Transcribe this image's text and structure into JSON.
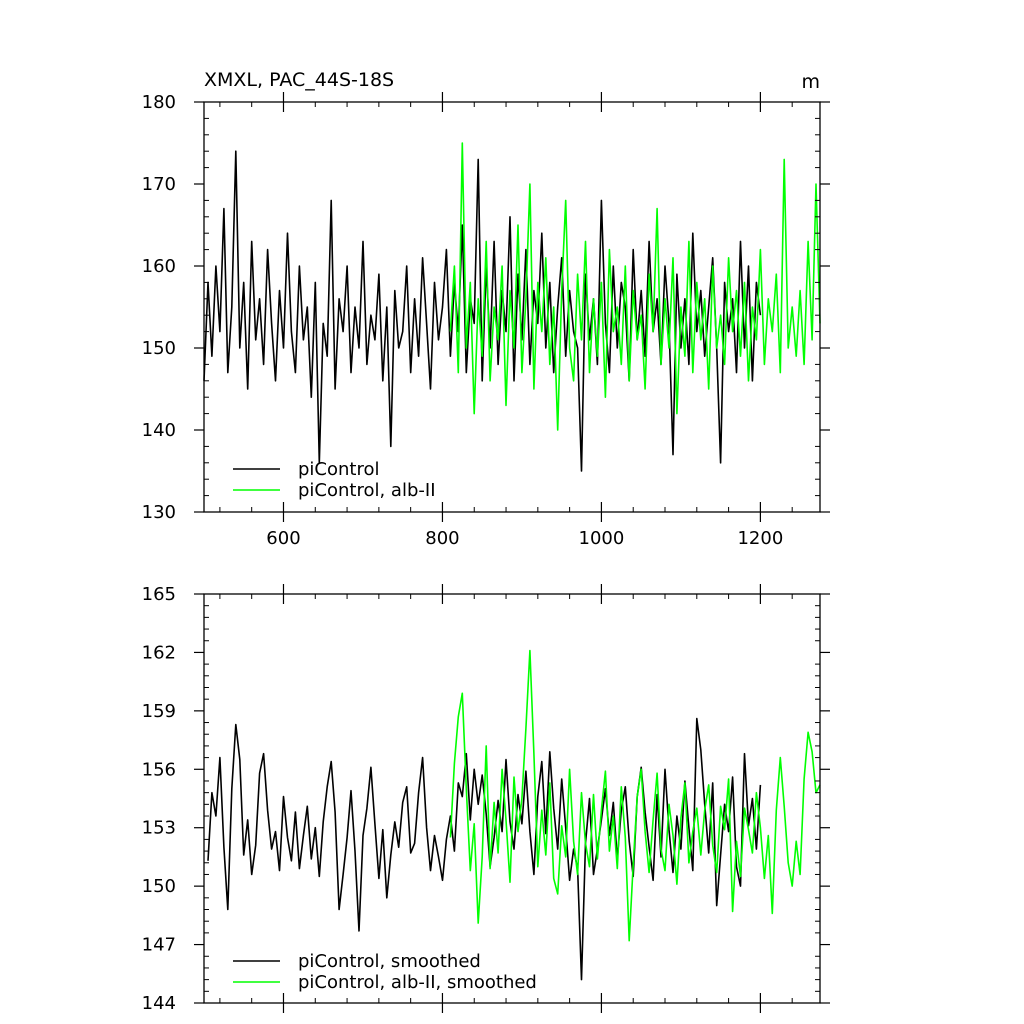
{
  "chart_data": [
    {
      "type": "line",
      "title": "XMXL, PAC_44S-18S",
      "units": "m",
      "xlim": [
        500,
        1275
      ],
      "ylim": [
        130,
        180
      ],
      "xticks": [
        600,
        800,
        1000,
        1200
      ],
      "yticks": [
        130,
        140,
        150,
        160,
        170,
        180
      ],
      "xticklabels": [
        "600",
        "800",
        "1000",
        "1200"
      ],
      "yticklabels": [
        "130",
        "140",
        "150",
        "160",
        "170",
        "180"
      ],
      "legend_position": "bottom-left",
      "series": [
        {
          "name": "piControl",
          "color": "#000000",
          "x": [
            500,
            505,
            510,
            515,
            520,
            525,
            530,
            535,
            540,
            545,
            550,
            555,
            560,
            565,
            570,
            575,
            580,
            585,
            590,
            595,
            600,
            605,
            610,
            615,
            620,
            625,
            630,
            635,
            640,
            645,
            650,
            655,
            660,
            665,
            670,
            675,
            680,
            685,
            690,
            695,
            700,
            705,
            710,
            715,
            720,
            725,
            730,
            735,
            740,
            745,
            750,
            755,
            760,
            765,
            770,
            775,
            780,
            785,
            790,
            795,
            800,
            805,
            810,
            815,
            820,
            825,
            830,
            835,
            840,
            845,
            850,
            855,
            860,
            865,
            870,
            875,
            880,
            885,
            890,
            895,
            900,
            905,
            910,
            915,
            920,
            925,
            930,
            935,
            940,
            945,
            950,
            955,
            960,
            965,
            970,
            975,
            980,
            985,
            990,
            995,
            1000,
            1005,
            1010,
            1015,
            1020,
            1025,
            1030,
            1035,
            1040,
            1045,
            1050,
            1055,
            1060,
            1065,
            1070,
            1075,
            1080,
            1085,
            1090,
            1095,
            1100,
            1105,
            1110,
            1115,
            1120,
            1125,
            1130,
            1135,
            1140,
            1145,
            1150,
            1155,
            1160,
            1165,
            1170,
            1175,
            1180,
            1185,
            1190,
            1195,
            1200
          ],
          "values": [
            146,
            158,
            149,
            160,
            152,
            167,
            147,
            155,
            174,
            150,
            158,
            145,
            163,
            151,
            156,
            148,
            162,
            153,
            146,
            157,
            150,
            164,
            152,
            147,
            160,
            151,
            155,
            144,
            158,
            136,
            153,
            149,
            168,
            145,
            156,
            152,
            160,
            147,
            155,
            150,
            163,
            148,
            154,
            151,
            159,
            146,
            155,
            138,
            157,
            150,
            152,
            160,
            147,
            156,
            149,
            161,
            153,
            145,
            158,
            151,
            155,
            162,
            149,
            158,
            152,
            165,
            147,
            156,
            153,
            173,
            146,
            160,
            150,
            163,
            148,
            157,
            152,
            166,
            146,
            159,
            151,
            162,
            148,
            157,
            153,
            164,
            150,
            158,
            147,
            155,
            161,
            149,
            157,
            152,
            150,
            135,
            159,
            151,
            156,
            148,
            168,
            153,
            147,
            160,
            150,
            158,
            155,
            146,
            162,
            151,
            157,
            149,
            163,
            152,
            156,
            148,
            160,
            153,
            137,
            159,
            150,
            156,
            148,
            164,
            152,
            157,
            149,
            155,
            161,
            150,
            136,
            158,
            152,
            156,
            147,
            163,
            150,
            160,
            146,
            158,
            154
          ]
        },
        {
          "name": "piControl, alb-II",
          "color": "#00ff00",
          "x": [
            810,
            815,
            820,
            825,
            830,
            835,
            840,
            845,
            850,
            855,
            860,
            865,
            870,
            875,
            880,
            885,
            890,
            895,
            900,
            905,
            910,
            915,
            920,
            925,
            930,
            935,
            940,
            945,
            950,
            955,
            960,
            965,
            970,
            975,
            980,
            985,
            990,
            995,
            1000,
            1005,
            1010,
            1015,
            1020,
            1025,
            1030,
            1035,
            1040,
            1045,
            1050,
            1055,
            1060,
            1065,
            1070,
            1075,
            1080,
            1085,
            1090,
            1095,
            1100,
            1105,
            1110,
            1115,
            1120,
            1125,
            1130,
            1135,
            1140,
            1145,
            1150,
            1155,
            1160,
            1165,
            1170,
            1175,
            1180,
            1185,
            1190,
            1195,
            1200,
            1205,
            1210,
            1215,
            1220,
            1225,
            1230,
            1235,
            1240,
            1245,
            1250,
            1255,
            1260,
            1265,
            1270,
            1275
          ],
          "values": [
            152,
            160,
            147,
            175,
            150,
            158,
            142,
            156,
            149,
            163,
            146,
            155,
            151,
            160,
            143,
            157,
            150,
            165,
            147,
            156,
            170,
            145,
            158,
            152,
            161,
            148,
            155,
            140,
            157,
            168,
            150,
            146,
            159,
            151,
            163,
            147,
            156,
            149,
            158,
            144,
            162,
            152,
            155,
            148,
            160,
            146,
            157,
            151,
            154,
            145,
            159,
            152,
            167,
            148,
            156,
            150,
            161,
            142,
            155,
            149,
            163,
            147,
            158,
            151,
            156,
            145,
            160,
            150,
            154,
            148,
            161,
            152,
            157,
            149,
            158,
            146,
            155,
            151,
            162,
            148,
            156,
            152,
            159,
            147,
            173,
            150,
            155,
            149,
            157,
            148,
            163,
            151,
            170,
            153
          ]
        }
      ]
    },
    {
      "type": "line",
      "xlim": [
        500,
        1275
      ],
      "ylim": [
        144,
        165
      ],
      "yticks": [
        144,
        147,
        150,
        153,
        156,
        159,
        162,
        165
      ],
      "yticklabels": [
        "144",
        "147",
        "150",
        "153",
        "156",
        "159",
        "162",
        "165"
      ],
      "legend_position": "bottom-left",
      "series": [
        {
          "name": "piControl, smoothed",
          "color": "#000000",
          "x": [
            505,
            510,
            515,
            520,
            525,
            530,
            535,
            540,
            545,
            550,
            555,
            560,
            565,
            570,
            575,
            580,
            585,
            590,
            595,
            600,
            605,
            610,
            615,
            620,
            625,
            630,
            635,
            640,
            645,
            650,
            655,
            660,
            665,
            670,
            675,
            680,
            685,
            690,
            695,
            700,
            705,
            710,
            715,
            720,
            725,
            730,
            735,
            740,
            745,
            750,
            755,
            760,
            765,
            770,
            775,
            780,
            785,
            790,
            795,
            800,
            805,
            810,
            815,
            820,
            825,
            830,
            835,
            840,
            845,
            850,
            855,
            860,
            865,
            870,
            875,
            880,
            885,
            890,
            895,
            900,
            905,
            910,
            915,
            920,
            925,
            930,
            935,
            940,
            945,
            950,
            955,
            960,
            965,
            970,
            975,
            980,
            985,
            990,
            995,
            1000,
            1005,
            1010,
            1015,
            1020,
            1025,
            1030,
            1035,
            1040,
            1045,
            1050,
            1055,
            1060,
            1065,
            1070,
            1075,
            1080,
            1085,
            1090,
            1095,
            1100,
            1105,
            1110,
            1115,
            1120,
            1125,
            1130,
            1135,
            1140,
            1145,
            1150,
            1155,
            1160,
            1165,
            1170,
            1175,
            1180,
            1185,
            1190,
            1195,
            1200
          ],
          "values": [
            151.3,
            154.8,
            153.6,
            156.6,
            152.0,
            148.8,
            155.0,
            158.3,
            156.5,
            151.6,
            153.4,
            150.6,
            152.1,
            155.8,
            156.8,
            153.9,
            151.9,
            152.8,
            150.8,
            154.6,
            152.5,
            151.3,
            153.8,
            150.9,
            152.6,
            154.1,
            151.4,
            153.0,
            150.5,
            153.3,
            155.1,
            156.4,
            153.8,
            148.8,
            150.6,
            152.5,
            154.9,
            151.8,
            147.7,
            152.6,
            154.0,
            156.1,
            153.2,
            150.4,
            152.9,
            149.4,
            151.6,
            153.3,
            152.0,
            154.3,
            155.1,
            151.7,
            152.2,
            154.8,
            156.6,
            153.0,
            150.8,
            152.6,
            151.5,
            150.3,
            152.4,
            153.6,
            151.8,
            155.3,
            154.6,
            156.8,
            153.4,
            156.0,
            154.2,
            155.7,
            153.7,
            151.0,
            152.5,
            154.4,
            152.8,
            156.5,
            153.3,
            151.9,
            154.7,
            153.2,
            155.9,
            152.8,
            150.6,
            154.6,
            156.4,
            152.7,
            156.9,
            154.0,
            151.9,
            155.5,
            153.0,
            150.3,
            151.9,
            150.9,
            145.2,
            152.2,
            154.5,
            150.6,
            151.9,
            153.4,
            155.0,
            152.6,
            154.3,
            151.4,
            153.9,
            155.1,
            152.3,
            150.5,
            154.6,
            156.1,
            153.8,
            152.0,
            150.3,
            154.7,
            151.5,
            156.0,
            152.9,
            150.7,
            153.6,
            151.9,
            155.4,
            153.0,
            150.8,
            158.6,
            157.0,
            154.2,
            151.7,
            155.3,
            149.0,
            151.6,
            154.2,
            152.8,
            155.6,
            151.0,
            150.0,
            156.8,
            153.1,
            154.5,
            151.9,
            155.2
          ]
        },
        {
          "name": "piControl, alb-II, smoothed",
          "color": "#00ff00",
          "x": [
            810,
            815,
            820,
            825,
            830,
            835,
            840,
            845,
            850,
            855,
            860,
            865,
            870,
            875,
            880,
            885,
            890,
            895,
            900,
            905,
            910,
            915,
            920,
            925,
            930,
            935,
            940,
            945,
            950,
            955,
            960,
            965,
            970,
            975,
            980,
            985,
            990,
            995,
            1000,
            1005,
            1010,
            1015,
            1020,
            1025,
            1030,
            1035,
            1040,
            1045,
            1050,
            1055,
            1060,
            1065,
            1070,
            1075,
            1080,
            1085,
            1090,
            1095,
            1100,
            1105,
            1110,
            1115,
            1120,
            1125,
            1130,
            1135,
            1140,
            1145,
            1150,
            1155,
            1160,
            1165,
            1170,
            1175,
            1180,
            1185,
            1190,
            1195,
            1200,
            1205,
            1210,
            1215,
            1220,
            1225,
            1230,
            1235,
            1240,
            1245,
            1250,
            1255,
            1260,
            1265,
            1270,
            1275
          ],
          "values": [
            152.5,
            156.3,
            158.7,
            159.9,
            155.0,
            150.8,
            153.2,
            148.1,
            151.5,
            157.2,
            150.9,
            154.3,
            151.7,
            156.0,
            153.4,
            150.2,
            155.6,
            152.8,
            154.5,
            158.1,
            162.1,
            156.8,
            151.0,
            153.9,
            151.6,
            155.3,
            150.4,
            149.6,
            153.1,
            151.5,
            156.0,
            152.3,
            150.6,
            154.8,
            152.2,
            151.0,
            154.7,
            151.4,
            153.9,
            155.9,
            151.8,
            153.6,
            150.9,
            155.1,
            152.5,
            147.2,
            151.1,
            154.6,
            156.0,
            152.8,
            150.7,
            153.4,
            155.8,
            151.9,
            150.8,
            154.2,
            152.6,
            150.1,
            153.5,
            155.3,
            151.2,
            152.8,
            154.0,
            151.6,
            153.9,
            155.2,
            152.1,
            150.7,
            154.1,
            152.9,
            155.5,
            148.7,
            152.3,
            150.5,
            154.0,
            152.9,
            151.7,
            154.8,
            153.0,
            150.4,
            152.6,
            148.6,
            153.9,
            156.6,
            154.1,
            151.2,
            150.0,
            152.3,
            150.6,
            155.5,
            157.9,
            156.9,
            154.8,
            155.2
          ]
        }
      ]
    }
  ]
}
